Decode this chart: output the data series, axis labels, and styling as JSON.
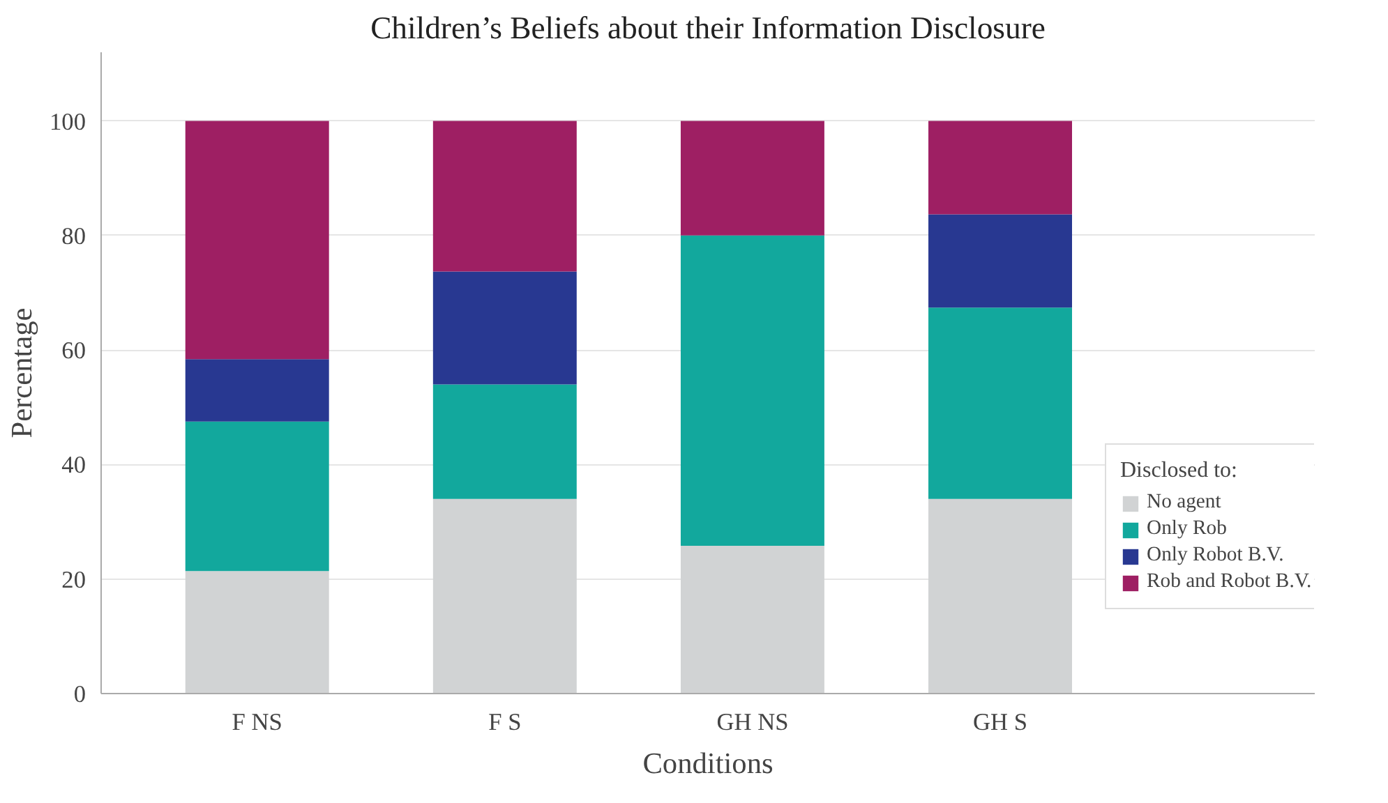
{
  "chart_data": {
    "type": "bar",
    "stacked": true,
    "title": "Children’s Beliefs about their Information Disclosure",
    "xlabel": "Conditions",
    "ylabel": "Percentage",
    "legend_title": "Disclosed to:",
    "categories": [
      "F NS",
      "F S",
      "GH NS",
      "GH S"
    ],
    "series": [
      {
        "name": "No agent",
        "color": "#d1d3d4",
        "values": [
          21.4,
          34,
          25.8,
          34
        ]
      },
      {
        "name": "Only Rob",
        "color": "#12a89d",
        "values": [
          26.1,
          20,
          54.2,
          33.4
        ]
      },
      {
        "name": "Only Robot B.V.",
        "color": "#283891",
        "values": [
          10.9,
          19.7,
          0,
          16.3
        ]
      },
      {
        "name": "Rob and Robot B.V.",
        "color": "#9e1f63",
        "values": [
          41.6,
          26.3,
          20,
          16.3
        ]
      }
    ],
    "ylim": [
      0,
      112
    ],
    "yticks": [
      0,
      20,
      40,
      60,
      80,
      100
    ],
    "grid": "y",
    "legend": "bottom right"
  }
}
